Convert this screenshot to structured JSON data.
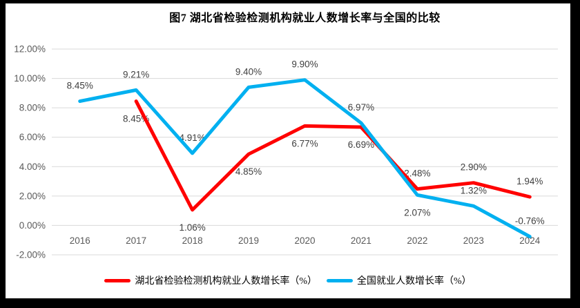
{
  "frame": {
    "background": "#000000",
    "chart_background": "#ffffff"
  },
  "chart_data": {
    "type": "line",
    "title": "图7 湖北省检验检测机构就业人数增长率与全国的比较",
    "categories": [
      "2016",
      "2017",
      "2018",
      "2019",
      "2020",
      "2021",
      "2022",
      "2023",
      "2024"
    ],
    "series": [
      {
        "id": "hubei",
        "name": "湖北省检验检测机构就业人数增长率（%）",
        "color": "#ff0000",
        "values": [
          null,
          8.45,
          1.06,
          4.85,
          6.77,
          6.69,
          2.48,
          2.9,
          1.94
        ],
        "labels": [
          null,
          "8.45%",
          "1.06%",
          "4.85%",
          "6.77%",
          "6.69%",
          "2.48%",
          "2.90%",
          "1.94%"
        ],
        "label_side": [
          null,
          "below",
          "below",
          "below",
          "below",
          "below",
          "above",
          "above",
          "above"
        ]
      },
      {
        "id": "national",
        "name": "全国就业人数增长率（%）",
        "color": "#00b0f0",
        "values": [
          8.45,
          9.21,
          4.91,
          9.4,
          9.9,
          6.97,
          2.07,
          1.32,
          -0.76
        ],
        "labels": [
          "8.45%",
          "9.21%",
          "4.91%",
          "9.40%",
          "9.90%",
          "6.97%",
          "2.07%",
          "1.32%",
          "-0.76%"
        ],
        "label_side": [
          "above",
          "above",
          "above",
          "above",
          "above",
          "above",
          "below",
          "above",
          "above"
        ]
      }
    ],
    "yticks": [
      "12.00%",
      "10.00%",
      "8.00%",
      "6.00%",
      "4.00%",
      "2.00%",
      "0.00%",
      "-2.00%"
    ],
    "ylim": [
      -2,
      12
    ],
    "grid": true,
    "gridline_color": "#d9d9d9",
    "tick_label_color": "#595959",
    "data_label_color": "#3f3f3f",
    "legend_position": "bottom"
  }
}
